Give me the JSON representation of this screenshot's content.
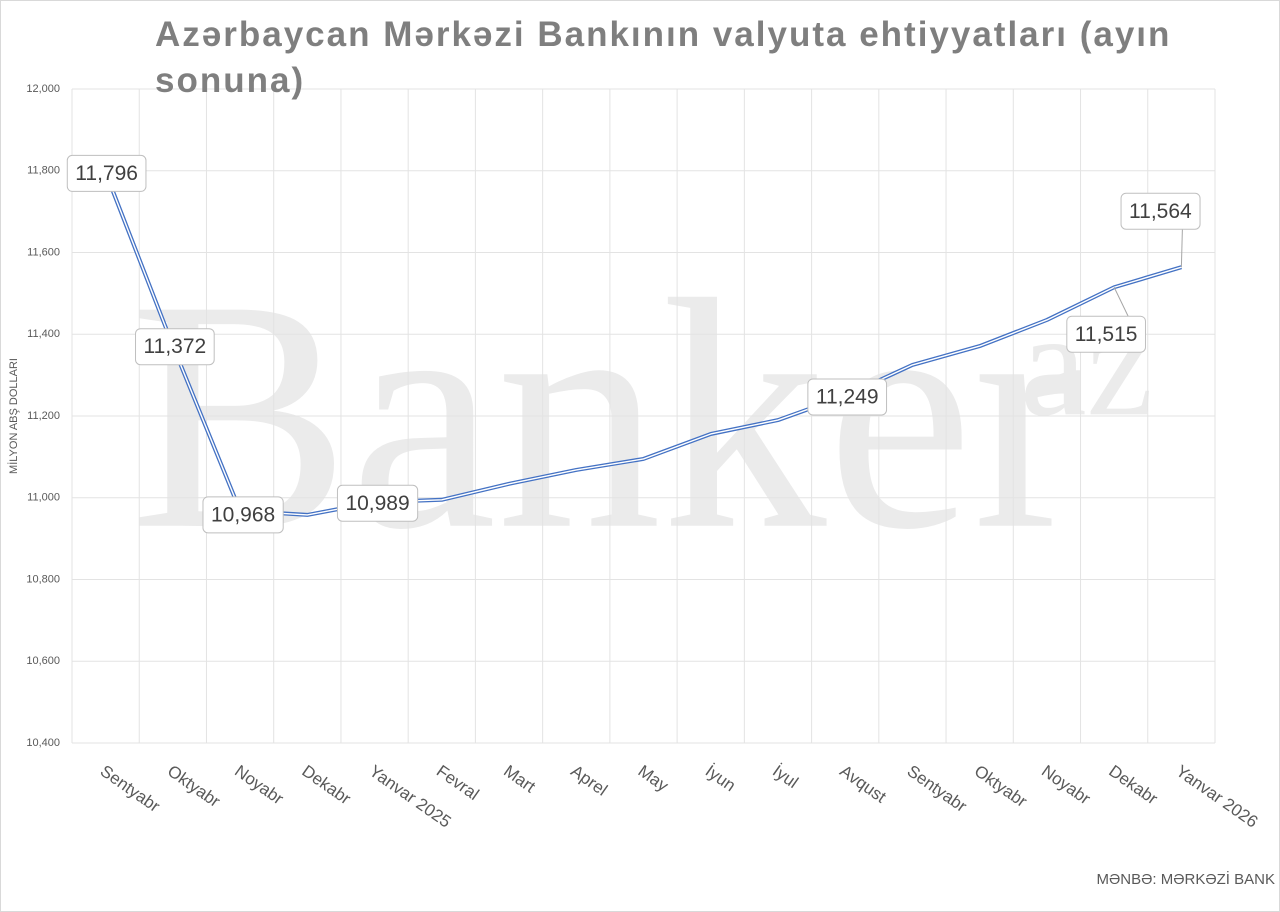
{
  "chart_data": {
    "type": "line",
    "title": "Azərbaycan Mərkəzi Bankının valyuta ehtiyyatları (ayın sonuna)",
    "y_label": "MİLYON ABŞ DOLLARI",
    "source": "MƏNBƏ: MƏRKƏZİ BANK",
    "watermark": "Banker",
    "watermark_sup": "az",
    "categories": [
      "Sentyabr",
      "Oktyabr",
      "Noyabr",
      "Dekabr",
      "Yanvar 2025",
      "Fevral",
      "Mart",
      "Aprel",
      "May",
      "İyun",
      "İyul",
      "Avqust",
      "Sentyabr",
      "Oktyabr",
      "Noyabr",
      "Dekabr",
      "Yanvar 2026"
    ],
    "values": [
      11796,
      11372,
      10968,
      10958,
      10989,
      10995,
      11034,
      11068,
      11095,
      11156,
      11190,
      11249,
      11325,
      11371,
      11435,
      11515,
      11564
    ],
    "value_labels": [
      "11,796",
      "11,372",
      "10,968",
      null,
      "10,989",
      null,
      null,
      null,
      null,
      null,
      null,
      "11,249",
      null,
      null,
      null,
      "11,515",
      "11,564"
    ],
    "color": "#4472c4",
    "ylim": [
      10400,
      12000
    ],
    "yticks": [
      {
        "value": 10400,
        "label": "10,400"
      },
      {
        "value": 10600,
        "label": "10,600"
      },
      {
        "value": 10800,
        "label": "10,800"
      },
      {
        "value": 11000,
        "label": "11,000"
      },
      {
        "value": 11200,
        "label": "11,200"
      },
      {
        "value": 11400,
        "label": "11,400"
      },
      {
        "value": 11600,
        "label": "11,600"
      },
      {
        "value": 11800,
        "label": "11,800"
      },
      {
        "value": 12000,
        "label": "12,000"
      }
    ],
    "grid": true
  }
}
